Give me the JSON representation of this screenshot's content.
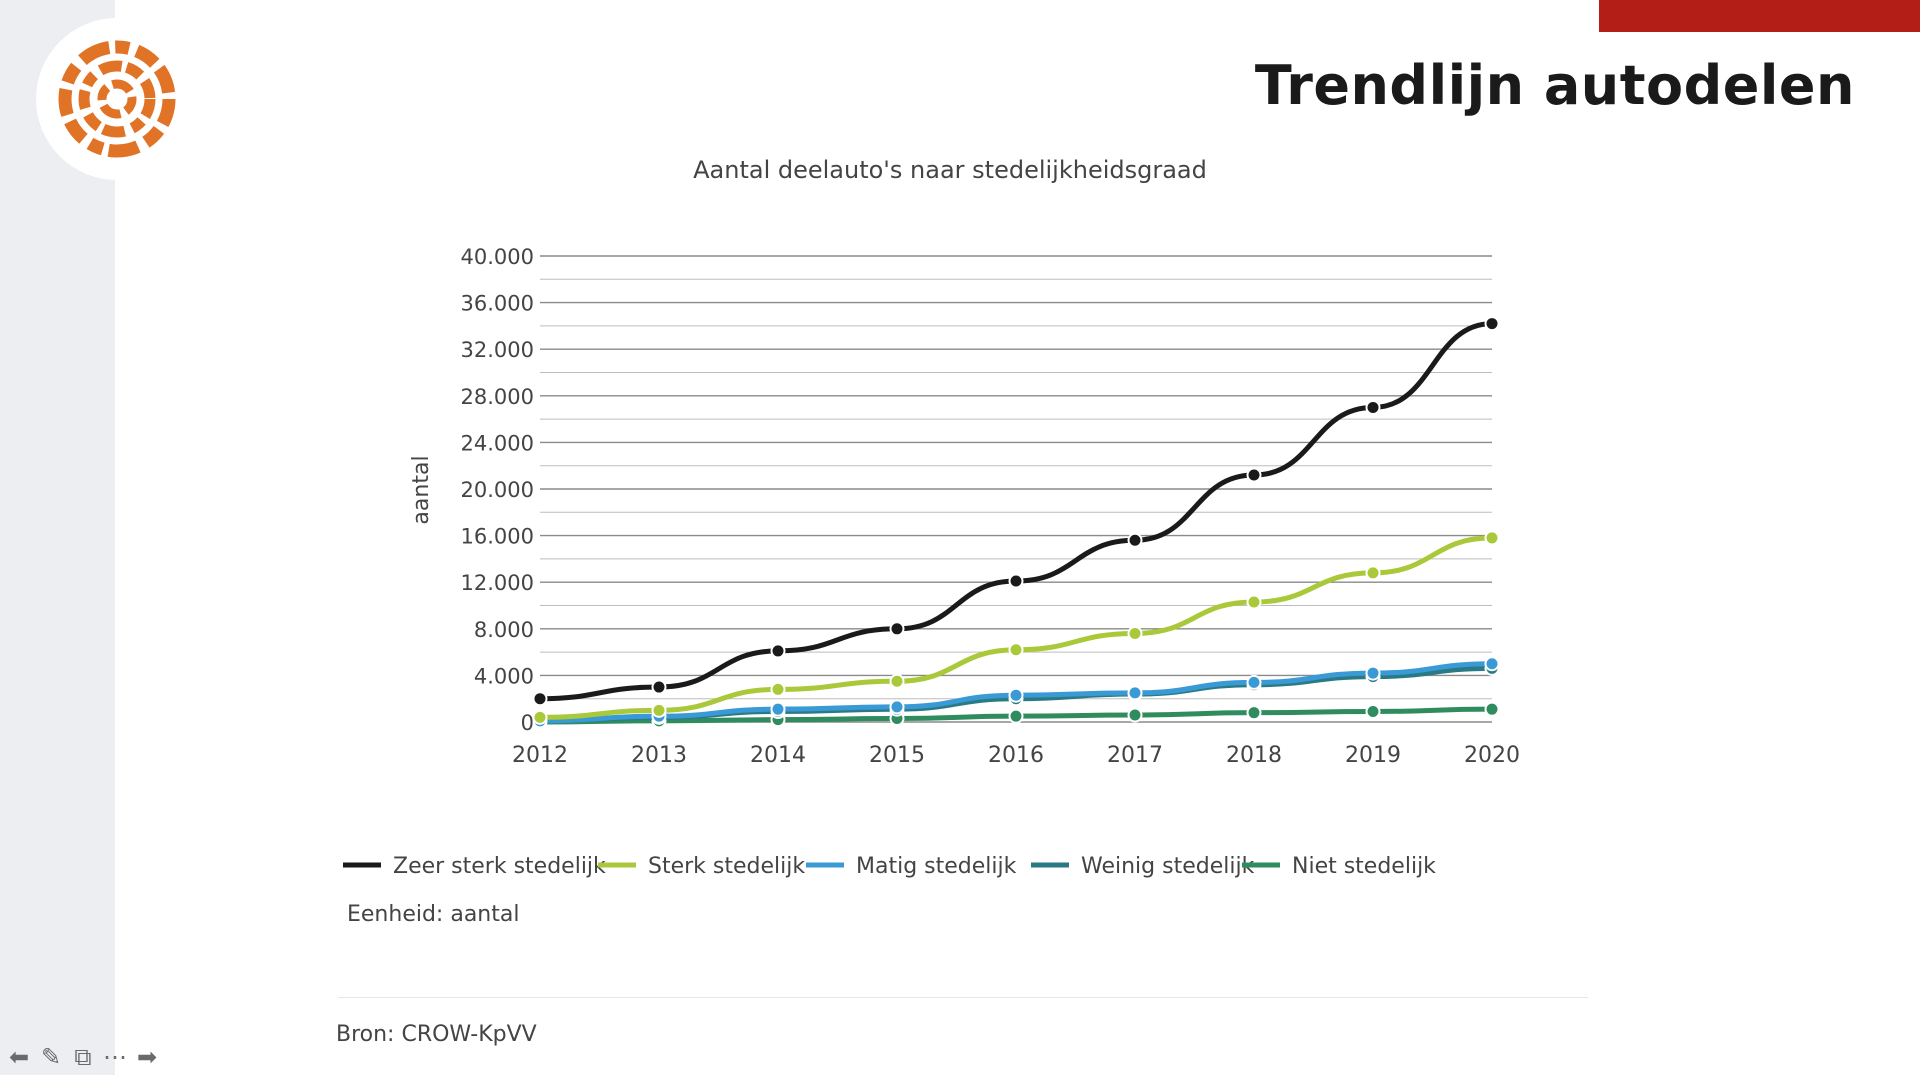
{
  "slide": {
    "title": "Trendlijn autodelen",
    "source": "Bron: CROW-KpVV",
    "unit_note": "Eenheid: aantal"
  },
  "colors": {
    "accent_bar": "#b31e17",
    "logo": "#e07326"
  },
  "nav": [
    "arrow-left-icon",
    "pen-icon",
    "subtitle-icon",
    "more-icon",
    "arrow-right-icon"
  ],
  "chart_data": {
    "type": "line",
    "title": "Aantal deelauto's naar stedelijkheidsgraad",
    "xlabel": "",
    "ylabel": "aantal",
    "categories": [
      "2012",
      "2013",
      "2014",
      "2015",
      "2016",
      "2017",
      "2018",
      "2019",
      "2020"
    ],
    "ylim": [
      0,
      40000
    ],
    "yticks": [
      0,
      4000,
      8000,
      12000,
      16000,
      20000,
      24000,
      28000,
      32000,
      36000,
      40000
    ],
    "ytick_labels": [
      "0",
      "4.000",
      "8.000",
      "12.000",
      "16.000",
      "20.000",
      "24.000",
      "28.000",
      "32.000",
      "36.000",
      "40.000"
    ],
    "grid": true,
    "legend": "bottom",
    "series": [
      {
        "name": "Zeer sterk stedelijk",
        "color": "#1a1a1a",
        "values": [
          2000,
          3000,
          6100,
          8000,
          12100,
          15600,
          21200,
          27000,
          34200
        ]
      },
      {
        "name": "Sterk stedelijk",
        "color": "#a9c93a",
        "values": [
          400,
          1000,
          2800,
          3500,
          6200,
          7600,
          10300,
          12800,
          15800
        ]
      },
      {
        "name": "Matig stedelijk",
        "color": "#3a9ad6",
        "values": [
          100,
          500,
          1100,
          1300,
          2300,
          2500,
          3400,
          4200,
          5000
        ]
      },
      {
        "name": "Weinig stedelijk",
        "color": "#2a7a86",
        "values": [
          100,
          400,
          900,
          1100,
          2000,
          2400,
          3200,
          3900,
          4600
        ]
      },
      {
        "name": "Niet stedelijk",
        "color": "#2f8c5e",
        "values": [
          0,
          100,
          200,
          300,
          500,
          600,
          800,
          900,
          1100
        ]
      }
    ]
  }
}
